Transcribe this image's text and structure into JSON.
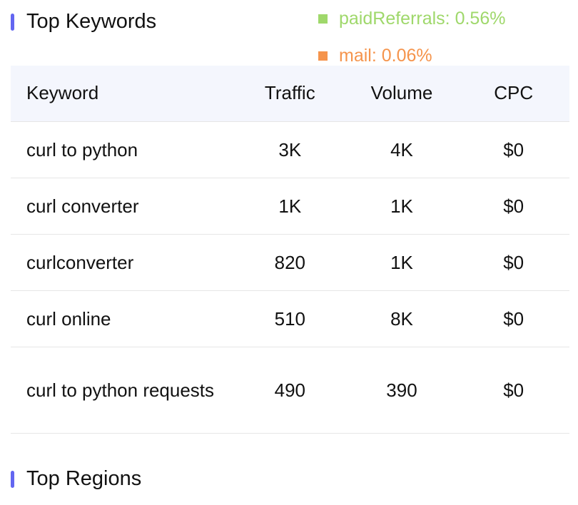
{
  "sections": {
    "keywords_title": "Top Keywords",
    "regions_title": "Top Regions"
  },
  "accent_color": "#6366f1",
  "legend": [
    {
      "label": "paidReferrals: 0.56%",
      "color": "#9fd86b"
    },
    {
      "label": "mail: 0.06%",
      "color": "#f5944c"
    }
  ],
  "table": {
    "headers": [
      "Keyword",
      "Traffic",
      "Volume",
      "CPC"
    ],
    "rows": [
      {
        "keyword": "curl to python",
        "traffic": "3K",
        "volume": "4K",
        "cpc": "$0"
      },
      {
        "keyword": "curl converter",
        "traffic": "1K",
        "volume": "1K",
        "cpc": "$0"
      },
      {
        "keyword": "curlconverter",
        "traffic": "820",
        "volume": "1K",
        "cpc": "$0"
      },
      {
        "keyword": "curl online",
        "traffic": "510",
        "volume": "8K",
        "cpc": "$0"
      },
      {
        "keyword": "curl to python requests",
        "traffic": "490",
        "volume": "390",
        "cpc": "$0"
      }
    ]
  }
}
